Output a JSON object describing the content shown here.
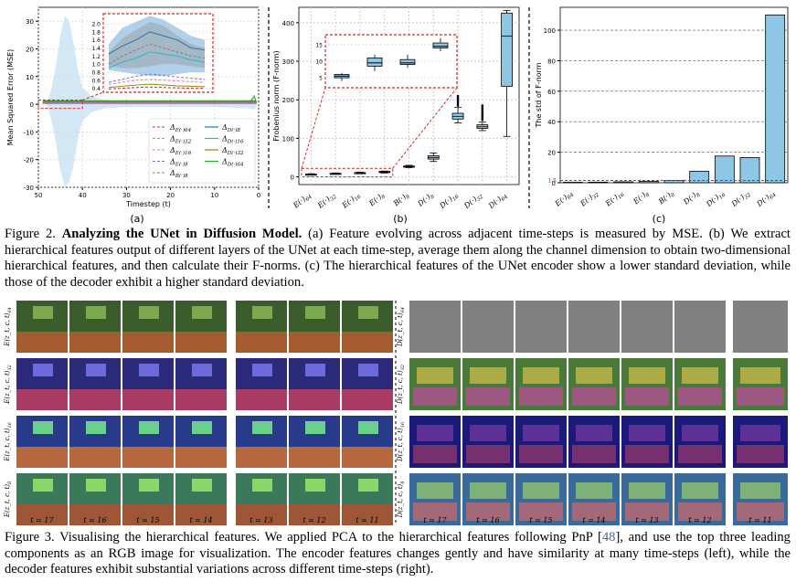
{
  "figure2": {
    "caption_prefix": "Figure 2.",
    "caption_title": "Analyzing the UNet in Diffusion Model.",
    "caption_body": "(a) Feature evolving across adjacent time-steps is measured by MSE. (b) We extract hierarchical features output of different layers of the UNet at each time-step, average them along the channel dimension to obtain two-dimensional hierarchical features, and then calculate their F-norms. (c) The hierarchical features of the UNet encoder show a lower standard deviation, while those of the decoder exhibit a higher standard deviation.",
    "panel_labels": [
      "(a)",
      "(b)",
      "(c)"
    ]
  },
  "chart_data": [
    {
      "panel": "(a)",
      "type": "line",
      "xlabel": "Timestep (t)",
      "ylabel": "Mean Squared Error (MSE)",
      "xlim": [
        50,
        0
      ],
      "ylim": [
        -30,
        35
      ],
      "x_ticks": [
        "50",
        "40",
        "30",
        "20",
        "10",
        "0"
      ],
      "y_ticks": [
        "30",
        "20",
        "10",
        "0",
        "-10",
        "-20",
        "-30"
      ],
      "inset_y_ticks": [
        "2.0",
        "1.8",
        "1.6",
        "1.4",
        "1.2",
        "1.0",
        "0.8",
        "0.6",
        "0.4"
      ],
      "legend_left": [
        "Δ_{E(·)_64}",
        "Δ_{E(·)_32}",
        "Δ_{E(·)_16}",
        "Δ_{E(·)_8}",
        "Δ_{B(·)_8}"
      ],
      "legend_right": [
        "Δ_{D(·)_8}",
        "Δ_{D(·)_16}",
        "Δ_{D(·)_32}",
        "Δ_{D(·)_64}"
      ],
      "series_colors": {
        "Δ_{E(·)_64}": "#d62728",
        "Δ_{E(·)_32}": "#ff7f0e",
        "Δ_{E(·)_16}": "#e377c2",
        "Δ_{E(·)_8}": "#9467bd",
        "Δ_{B(·)_8}": "#7f7f7f",
        "Δ_{D(·)_8}": "#1f77b4",
        "Δ_{D(·)_16}": "#17becf",
        "Δ_{D(·)_32}": "#8c8c00",
        "Δ_{D(·)_64}": "#2ca02c"
      },
      "inset_series": [
        {
          "name": "Δ_{D(·)_8}",
          "x": [
            45,
            40,
            35,
            30,
            25,
            20,
            15,
            10
          ],
          "values": [
            1.25,
            1.45,
            1.6,
            1.8,
            1.7,
            1.6,
            1.4,
            1.35
          ]
        },
        {
          "name": "Δ_{D(·)_16}",
          "x": [
            45,
            40,
            35,
            30,
            25,
            20,
            15,
            10
          ],
          "values": [
            0.9,
            1.05,
            1.15,
            1.3,
            1.25,
            1.2,
            1.1,
            1.05
          ]
        },
        {
          "name": "Δ_{B(·)_8}",
          "x": [
            45,
            40,
            35,
            30,
            25,
            20,
            15,
            10
          ],
          "values": [
            1.0,
            1.2,
            1.35,
            1.5,
            1.4,
            1.3,
            1.2,
            1.15
          ]
        },
        {
          "name": "Δ_{E(·)_8}",
          "x": [
            45,
            40,
            35,
            30,
            25,
            20,
            15,
            10
          ],
          "values": [
            0.55,
            0.62,
            0.7,
            0.75,
            0.72,
            0.68,
            0.65,
            0.62
          ]
        },
        {
          "name": "Δ_{E(·)_16}",
          "x": [
            45,
            40,
            35,
            30,
            25,
            20,
            15,
            10
          ],
          "values": [
            0.5,
            0.55,
            0.6,
            0.62,
            0.6,
            0.58,
            0.56,
            0.55
          ]
        },
        {
          "name": "Δ_{D(·)_32}",
          "x": [
            45,
            40,
            35,
            30,
            25,
            20,
            15,
            10
          ],
          "values": [
            0.42,
            0.45,
            0.48,
            0.5,
            0.48,
            0.46,
            0.45,
            0.44
          ]
        },
        {
          "name": "Δ_{E(·)_64}",
          "x": [
            45,
            40,
            35,
            30,
            25,
            20,
            15,
            10
          ],
          "values": [
            0.38,
            0.4,
            0.42,
            0.43,
            0.42,
            0.41,
            0.4,
            0.4
          ]
        }
      ]
    },
    {
      "panel": "(b)",
      "type": "box",
      "ylabel": "Frobenius norm (F-norm)",
      "categories": [
        "E(·)64",
        "E(·)32",
        "E(·)16",
        "E(·)8",
        "B(·)8",
        "D(·)8",
        "D(·)16",
        "D(·)32",
        "D(·)64"
      ],
      "ylim": [
        -20,
        440
      ],
      "y_ticks": [
        "400",
        "300",
        "200",
        "100",
        "0"
      ],
      "inset_y_ticks": [
        "15",
        "10",
        "5"
      ],
      "boxes": [
        {
          "min": 5,
          "q1": 6,
          "median": 6.5,
          "q3": 7,
          "max": 8
        },
        {
          "min": 7,
          "q1": 8,
          "median": 8.5,
          "q3": 9,
          "max": 10
        },
        {
          "min": 8,
          "q1": 9.5,
          "median": 10,
          "q3": 11,
          "max": 12
        },
        {
          "min": 10,
          "q1": 12,
          "median": 13,
          "q3": 14,
          "max": 15
        },
        {
          "min": 24,
          "q1": 26,
          "median": 27,
          "q3": 28,
          "max": 30
        },
        {
          "min": 40,
          "q1": 46,
          "median": 50,
          "q3": 55,
          "max": 62
        },
        {
          "min": 140,
          "q1": 150,
          "median": 157,
          "q3": 165,
          "max": 180
        },
        {
          "min": 120,
          "q1": 126,
          "median": 130,
          "q3": 135,
          "max": 142
        },
        {
          "min": 105,
          "q1": 235,
          "median": 365,
          "q3": 425,
          "max": 432
        }
      ]
    },
    {
      "panel": "(c)",
      "type": "bar",
      "ylabel": "The std of F-norm",
      "categories": [
        "E(·)64",
        "E(·)32",
        "E(·)16",
        "E(·)8",
        "B(·)8",
        "D(·)8",
        "D(·)16",
        "D(·)32",
        "D(·)64"
      ],
      "values": [
        0.3,
        0.4,
        0.6,
        0.9,
        1.5,
        7.5,
        17.5,
        16.5,
        110
      ],
      "ylim": [
        0,
        115
      ],
      "y_ticks": [
        "100",
        "80",
        "60",
        "40",
        "20",
        "0"
      ],
      "threshold": 1.5,
      "threshold_label": "1.5",
      "bar_color": "#8ec6e6"
    }
  ],
  "figure3": {
    "caption_prefix": "Figure 3.",
    "caption_body_before": "Visualising the hierarchical features.  We applied PCA to the hierarchical features following PnP [",
    "caption_ref": "48",
    "caption_body_after": "], and use the top three leading components as an RGB image for visualization. The encoder features changes gently and have similarity at many time-steps (left), while the decoder features exhibit substantial variations across different time-steps (right).",
    "left_row_labels": [
      "E(z_t, c, t)_64",
      "E(z_t, c, t)_32",
      "E(z_t, c, t)_16",
      "E(z_t, c, t)_8"
    ],
    "right_row_labels": [
      "D(z_t, c, t)_64",
      "D(z_t, c, t)_32",
      "D(z_t, c, t)_16",
      "D(z_t, c, t)_8"
    ],
    "timestep_labels": [
      "t = 17",
      "t = 16",
      "t = 15",
      "t = 14",
      "t = 13",
      "t = 12",
      "t = 11"
    ]
  }
}
